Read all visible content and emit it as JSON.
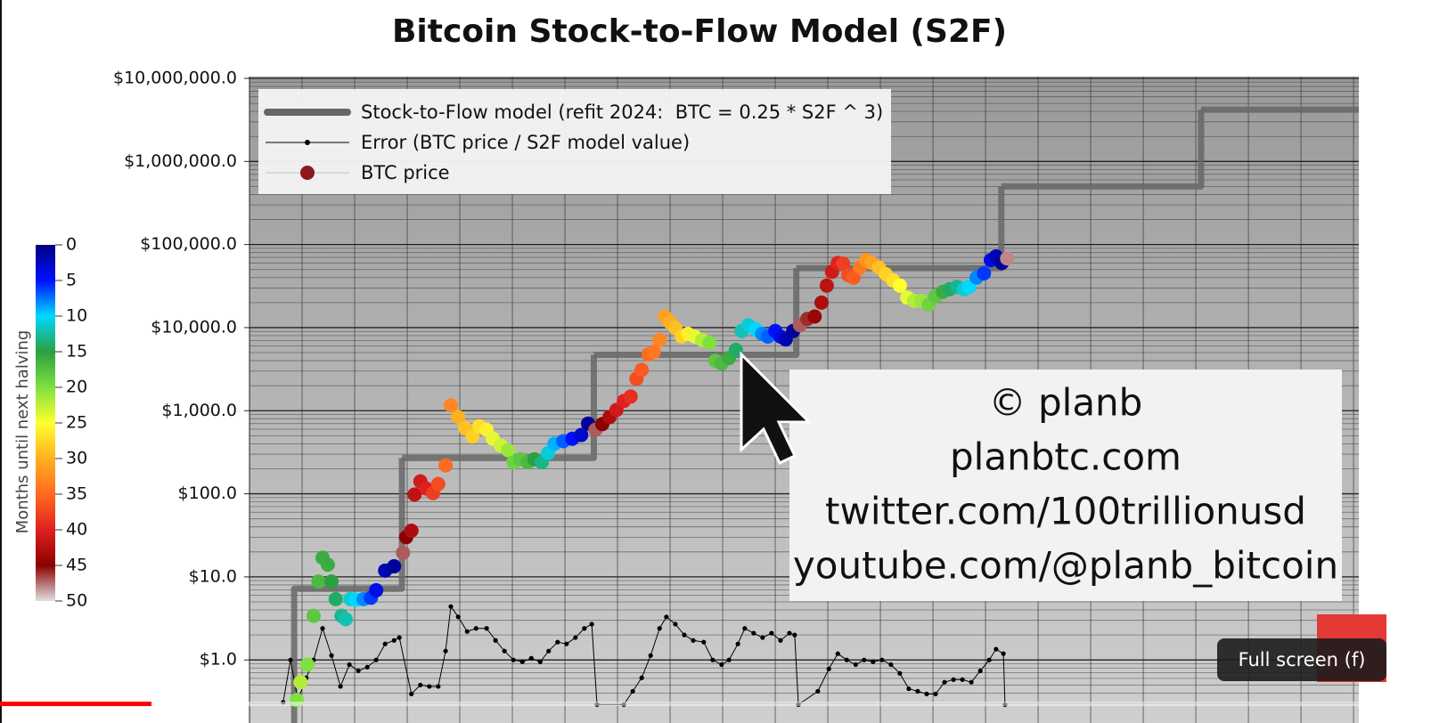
{
  "chart_data": {
    "type": "line",
    "title": "Bitcoin Stock-to-Flow Model (S2F)",
    "yscale": "log",
    "ylim": [
      0.3,
      10000000
    ],
    "yticks": [
      {
        "value": 1,
        "label": "$1.0"
      },
      {
        "value": 10,
        "label": "$10.0"
      },
      {
        "value": 100,
        "label": "$100.0"
      },
      {
        "value": 1000,
        "label": "$1,000.0"
      },
      {
        "value": 10000,
        "label": "$10,000.0"
      },
      {
        "value": 100000,
        "label": "$100,000.0"
      },
      {
        "value": 1000000,
        "label": "$1,000,000.0"
      },
      {
        "value": 10000000,
        "label": "$10,000,000.0"
      }
    ],
    "xlim": [
      2010,
      2031.1
    ],
    "grid": true,
    "legend": "upper left",
    "series": [
      {
        "name": "Stock-to-Flow model (refit 2024:  BTC = 0.25 * S2F ^ 3)",
        "style": "step",
        "color": "#676767",
        "x": [
          2010.85,
          2012.9,
          2016.55,
          2020.4,
          2024.3,
          2028.1
        ],
        "values": [
          7.2,
          270,
          4700,
          52000,
          500000,
          4200000
        ]
      },
      {
        "name": "Error (BTC price / S2F model value)",
        "style": "line-markers",
        "color": "#000000",
        "x": [
          2010.64,
          2010.78,
          2010.92,
          2011.08,
          2011.22,
          2011.39,
          2011.56,
          2011.73,
          2011.9,
          2012.07,
          2012.24,
          2012.41,
          2012.58,
          2012.75,
          2012.85,
          2013.08,
          2013.25,
          2013.42,
          2013.59,
          2013.73,
          2013.83,
          2013.97,
          2014.14,
          2014.31,
          2014.51,
          2014.68,
          2014.85,
          2015.02,
          2015.19,
          2015.36,
          2015.53,
          2015.69,
          2015.86,
          2016.03,
          2016.2,
          2016.37,
          2016.51,
          2016.61,
          2017.12,
          2017.29,
          2017.46,
          2017.63,
          2017.8,
          2017.93,
          2018.1,
          2018.27,
          2018.44,
          2018.64,
          2018.81,
          2018.98,
          2019.12,
          2019.29,
          2019.42,
          2019.59,
          2019.76,
          2019.93,
          2020.1,
          2020.27,
          2020.37,
          2020.44,
          2020.81,
          2021.02,
          2021.19,
          2021.36,
          2021.53,
          2021.69,
          2021.86,
          2022.03,
          2022.2,
          2022.37,
          2022.54,
          2022.71,
          2022.88,
          2023.05,
          2023.22,
          2023.39,
          2023.56,
          2023.73,
          2023.9,
          2024.07,
          2024.2,
          2024.34,
          2024.37
        ],
        "values": [
          0.31,
          1.0,
          0.33,
          0.61,
          1.0,
          2.4,
          1.13,
          0.48,
          0.88,
          0.74,
          0.82,
          1.0,
          1.56,
          1.72,
          1.86,
          0.39,
          0.5,
          0.48,
          0.48,
          1.28,
          4.4,
          3.3,
          2.2,
          2.4,
          2.4,
          1.72,
          1.28,
          1.0,
          0.95,
          1.05,
          0.95,
          1.28,
          1.64,
          1.56,
          1.86,
          2.4,
          2.7,
          0.29,
          0.29,
          0.42,
          0.61,
          1.13,
          2.4,
          3.3,
          2.7,
          2.0,
          1.72,
          1.64,
          1.0,
          0.88,
          1.0,
          1.56,
          2.4,
          2.1,
          1.86,
          2.1,
          1.72,
          2.1,
          2.0,
          0.29,
          0.42,
          0.78,
          1.19,
          1.0,
          0.88,
          1.0,
          0.95,
          1.0,
          0.88,
          0.69,
          0.45,
          0.42,
          0.39,
          0.39,
          0.54,
          0.58,
          0.58,
          0.54,
          0.74,
          1.0,
          1.35,
          1.19,
          0.29
        ]
      },
      {
        "name": "BTC price",
        "style": "markers",
        "color": "#8b1a1a",
        "x": [
          2010.9,
          2010.97,
          2011.1,
          2011.22,
          2011.31,
          2011.39,
          2011.49,
          2011.56,
          2011.64,
          2011.75,
          2011.83,
          2011.92,
          2012.03,
          2012.17,
          2012.31,
          2012.41,
          2012.58,
          2012.75,
          2012.92,
          2012.98,
          2013.08,
          2013.14,
          2013.25,
          2013.36,
          2013.49,
          2013.59,
          2013.73,
          2013.83,
          2013.97,
          2014.1,
          2014.24,
          2014.37,
          2014.51,
          2014.63,
          2014.78,
          2014.92,
          2015.02,
          2015.15,
          2015.29,
          2015.42,
          2015.56,
          2015.68,
          2015.8,
          2015.97,
          2016.14,
          2016.31,
          2016.44,
          2016.58,
          2016.71,
          2016.85,
          2016.98,
          2017.12,
          2017.25,
          2017.36,
          2017.46,
          2017.59,
          2017.69,
          2017.8,
          2017.9,
          2018.0,
          2018.1,
          2018.22,
          2018.34,
          2018.47,
          2018.61,
          2018.75,
          2018.86,
          2018.98,
          2019.12,
          2019.25,
          2019.36,
          2019.49,
          2019.63,
          2019.75,
          2019.86,
          2020.0,
          2020.1,
          2020.2,
          2020.34,
          2020.47,
          2020.61,
          2020.75,
          2020.88,
          2020.98,
          2021.08,
          2021.19,
          2021.29,
          2021.39,
          2021.49,
          2021.61,
          2021.73,
          2021.83,
          2021.97,
          2022.1,
          2022.24,
          2022.37,
          2022.51,
          2022.64,
          2022.78,
          2022.92,
          2023.05,
          2023.19,
          2023.32,
          2023.46,
          2023.59,
          2023.69,
          2023.83,
          2023.97,
          2024.1,
          2024.2,
          2024.31,
          2024.41
        ],
        "values": [
          0.33,
          0.54,
          0.88,
          3.4,
          8.8,
          17,
          14,
          8.8,
          5.4,
          3.4,
          3.1,
          5.4,
          5.3,
          5.4,
          5.6,
          6.9,
          11.9,
          13.4,
          19.5,
          30,
          36,
          98,
          141,
          116,
          102,
          131,
          220,
          1160,
          840,
          620,
          490,
          650,
          590,
          460,
          380,
          335,
          240,
          260,
          240,
          260,
          240,
          310,
          400,
          430,
          460,
          510,
          700,
          590,
          690,
          840,
          1020,
          1310,
          1480,
          2420,
          3100,
          4760,
          5100,
          7100,
          13600,
          11500,
          9900,
          7800,
          8400,
          7800,
          7100,
          6600,
          4000,
          3700,
          4300,
          5400,
          9100,
          10700,
          9500,
          8400,
          7800,
          9100,
          7800,
          7200,
          9100,
          10700,
          12700,
          13600,
          20000,
          32000,
          47000,
          60000,
          59000,
          43000,
          40000,
          53000,
          65000,
          60000,
          53000,
          44000,
          37000,
          32000,
          23000,
          21000,
          21000,
          19000,
          24000,
          27000,
          29000,
          31000,
          29000,
          31000,
          40000,
          45000,
          65000,
          72000,
          60000,
          68000
        ],
        "color_values": [
          20,
          22,
          20,
          18,
          17,
          16,
          16,
          15,
          14,
          13,
          12,
          11,
          10,
          8,
          6,
          4,
          2,
          1,
          47,
          45,
          43,
          42,
          41,
          40,
          38,
          37,
          35,
          33,
          30,
          29,
          28,
          27,
          26,
          24,
          23,
          21,
          19,
          18,
          17,
          15,
          13,
          11,
          9,
          7,
          5,
          3,
          1,
          47,
          45,
          43,
          41,
          40,
          39,
          37,
          36,
          35,
          34,
          33,
          31,
          30,
          29,
          28,
          26,
          24,
          22,
          20,
          18,
          17,
          16,
          14,
          12,
          11,
          10,
          8,
          7,
          5,
          4,
          2,
          1,
          47,
          46,
          44,
          43,
          42,
          41,
          40,
          38,
          37,
          36,
          34,
          32,
          31,
          29,
          28,
          27,
          25,
          24,
          22,
          21,
          19,
          18,
          16,
          14,
          13,
          11,
          10,
          8,
          6,
          4,
          2,
          1,
          48
        ]
      }
    ],
    "colorbar": {
      "label": "Months until next halving",
      "lim": [
        0,
        50
      ],
      "ticks": [
        0,
        5,
        10,
        15,
        20,
        25,
        30,
        35,
        40,
        45,
        50
      ],
      "colors": [
        "#000080",
        "#0010ff",
        "#00d8ff",
        "#2aa040",
        "#80e040",
        "#ffff30",
        "#ffb020",
        "#ff6a20",
        "#e02020",
        "#8b0000",
        "#e0e0e0"
      ]
    }
  },
  "watermark": {
    "lines": [
      "© planb",
      "planbtc.com",
      "twitter.com/100trillionusd",
      "youtube.com/@planb_bitcoin"
    ]
  },
  "player": {
    "tooltip": "Full screen (f)"
  }
}
